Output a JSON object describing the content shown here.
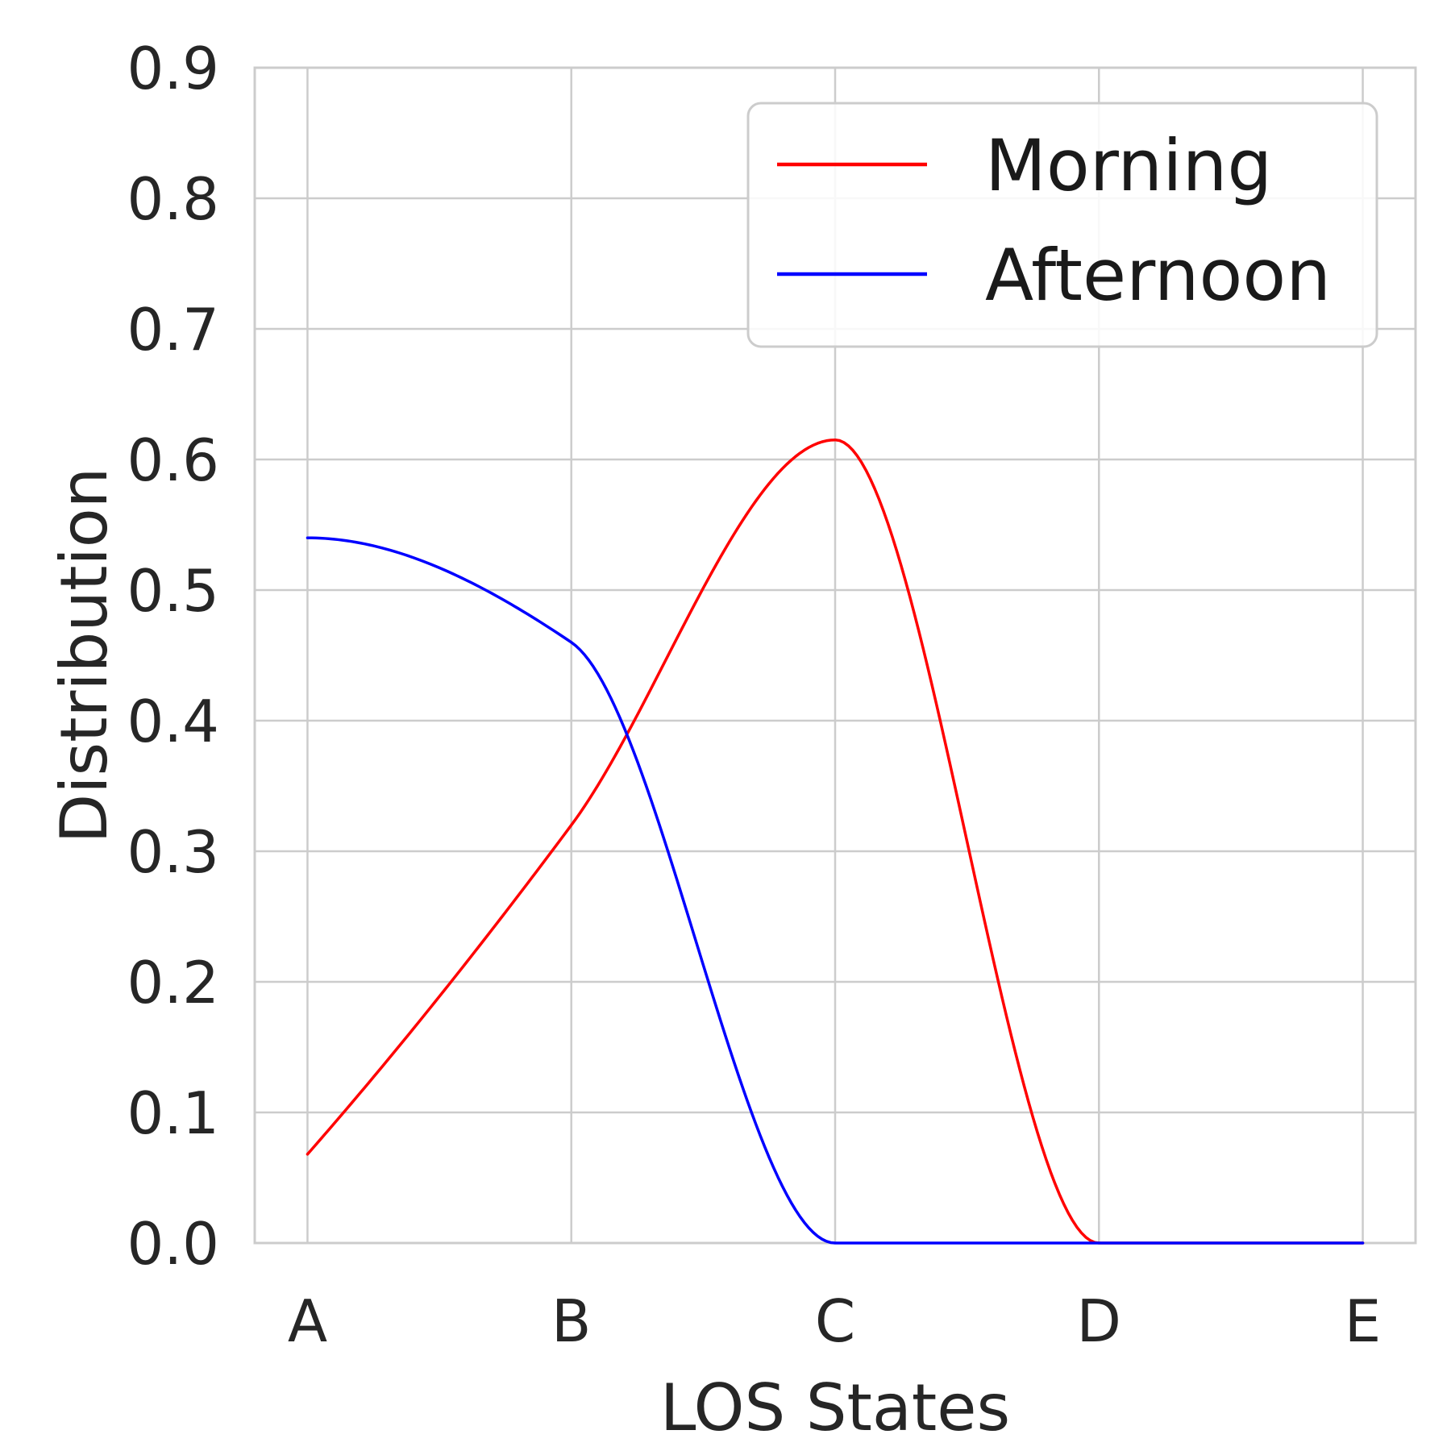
{
  "chart_data": {
    "type": "line",
    "xlabel": "LOS States",
    "ylabel": "Distribution",
    "categories": [
      "A",
      "B",
      "C",
      "D",
      "E"
    ],
    "yticks": [
      "0.0",
      "0.1",
      "0.2",
      "0.3",
      "0.4",
      "0.5",
      "0.6",
      "0.7",
      "0.8",
      "0.9"
    ],
    "ylim": [
      0,
      0.9
    ],
    "xlim": [
      -0.2,
      4.2
    ],
    "grid": true,
    "legend_position": "top-right",
    "series": [
      {
        "name": "Morning",
        "color": "#ff0000",
        "values": [
          0.068,
          0.32,
          0.615,
          0.0,
          0.0
        ]
      },
      {
        "name": "Afternoon",
        "color": "#0000ff",
        "values": [
          0.54,
          0.46,
          0.0,
          0.0,
          0.0
        ]
      }
    ]
  }
}
